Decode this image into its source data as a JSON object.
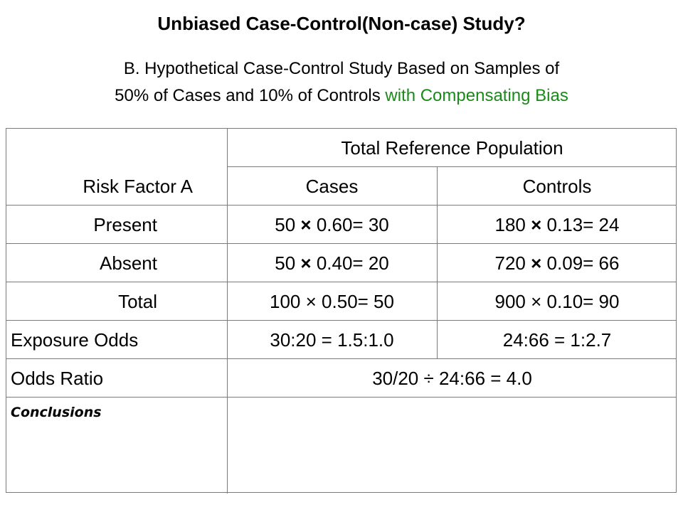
{
  "title": "Unbiased Case-Control(Non-case) Study?",
  "subtitle": {
    "line1": "B. Hypothetical Case-Control Study Based on Samples of",
    "line2_plain": "50% of Cases and 10% of Controls",
    "line2_green": "with Compensating Bias",
    "green_color": "#1a8a1a"
  },
  "table": {
    "population_header": "Total Reference Population",
    "row_header_label": "Risk Factor A",
    "col_cases": "Cases",
    "col_controls": "Controls",
    "rows": [
      {
        "label": "Present",
        "cases_pre": "50",
        "cases_op": "×",
        "cases_post": "0.60= 30",
        "controls_pre": "180",
        "controls_op": "×",
        "controls_post": "0.13= 24"
      },
      {
        "label": "Absent",
        "cases_pre": "50",
        "cases_op": "×",
        "cases_post": "0.40= 20",
        "controls_pre": "720",
        "controls_op": "×",
        "controls_post": "0.09= 66"
      },
      {
        "label": "Total",
        "cases_pre": "100",
        "cases_op": "×",
        "cases_post": "0.50= 50",
        "controls_pre": "900",
        "controls_op": "×",
        "controls_post": "0.10= 90"
      }
    ],
    "exposure_odds_label": "Exposure Odds",
    "exposure_odds_cases": "30:20 = 1.5:1.0",
    "exposure_odds_controls": "24:66 = 1:2.7",
    "odds_ratio_label": "Odds Ratio",
    "odds_ratio_value": "30/20 ÷ 24:66 = 4.0",
    "conclusions_label": "Conclusions"
  }
}
